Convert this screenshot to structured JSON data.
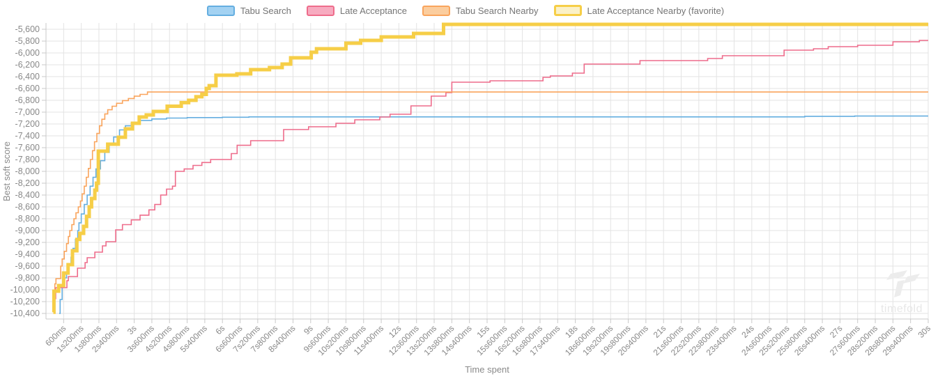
{
  "colors": {
    "grid": "#e3e3e3",
    "axis": "#c9c9c9",
    "tick_text": "#888888",
    "legend_text": "#757575",
    "watermark": "#ececec"
  },
  "watermark": {
    "text": "timefold"
  },
  "chart_data": {
    "type": "line",
    "step": true,
    "title": "",
    "xlabel": "Time spent",
    "ylabel": "Best soft score",
    "x_unit": "seconds",
    "xlim": [
      0,
      30
    ],
    "ylim": [
      -10400,
      -5600
    ],
    "y_tick_step": 200,
    "grid": true,
    "legend_position": "top",
    "x_tick_labels": [
      "600ms",
      "1s200ms",
      "1s800ms",
      "2s400ms",
      "3s",
      "3s600ms",
      "4s200ms",
      "4s800ms",
      "5s400ms",
      "6s",
      "6s600ms",
      "7s200ms",
      "7s800ms",
      "8s400ms",
      "9s",
      "9s600ms",
      "10s200ms",
      "10s800ms",
      "11s400ms",
      "12s",
      "12s600ms",
      "13s200ms",
      "13s800ms",
      "14s400ms",
      "15s",
      "15s600ms",
      "16s200ms",
      "16s800ms",
      "17s400ms",
      "18s",
      "18s600ms",
      "19s200ms",
      "19s800ms",
      "20s400ms",
      "21s",
      "21s600ms",
      "22s200ms",
      "22s800ms",
      "23s400ms",
      "24s",
      "24s600ms",
      "25s200ms",
      "25s800ms",
      "26s400ms",
      "27s",
      "27s600ms",
      "28s200ms",
      "28s800ms",
      "29s400ms",
      "30s"
    ],
    "y_tick_labels": [
      "-5,600",
      "-5,800",
      "-6,000",
      "-6,200",
      "-6,400",
      "-6,600",
      "-6,800",
      "-7,000",
      "-7,200",
      "-7,400",
      "-7,600",
      "-7,800",
      "-8,000",
      "-8,200",
      "-8,400",
      "-8,600",
      "-8,800",
      "-9,000",
      "-9,200",
      "-9,400",
      "-9,600",
      "-9,800",
      "-10,000",
      "-10,200",
      "-10,400"
    ],
    "series": [
      {
        "name": "Tabu Search",
        "color": "#64aee0",
        "fill": "#a3d2f2",
        "width": 1.6,
        "favorite": false,
        "points": [
          [
            0.45,
            -10400
          ],
          [
            0.48,
            -10165
          ],
          [
            0.55,
            -9930
          ],
          [
            0.62,
            -9800
          ],
          [
            0.7,
            -9700
          ],
          [
            0.78,
            -9580
          ],
          [
            0.85,
            -9450
          ],
          [
            0.92,
            -9300
          ],
          [
            1.0,
            -9150
          ],
          [
            1.08,
            -9000
          ],
          [
            1.12,
            -8870
          ],
          [
            1.2,
            -8720
          ],
          [
            1.3,
            -8560
          ],
          [
            1.4,
            -8400
          ],
          [
            1.5,
            -8250
          ],
          [
            1.6,
            -8100
          ],
          [
            1.7,
            -7960
          ],
          [
            1.85,
            -7820
          ],
          [
            2.0,
            -7680
          ],
          [
            2.15,
            -7550
          ],
          [
            2.3,
            -7420
          ],
          [
            2.5,
            -7300
          ],
          [
            2.7,
            -7230
          ],
          [
            2.9,
            -7180
          ],
          [
            3.2,
            -7140
          ],
          [
            3.6,
            -7115
          ],
          [
            4.1,
            -7100
          ],
          [
            4.8,
            -7092
          ],
          [
            6.0,
            -7086
          ],
          [
            6.9,
            -7080
          ],
          [
            25.8,
            -7072
          ],
          [
            27.5,
            -7066
          ],
          [
            30,
            -7066
          ]
        ]
      },
      {
        "name": "Late Acceptance",
        "color": "#ee6c8b",
        "fill": "#f7abc0",
        "width": 1.6,
        "favorite": false,
        "points": [
          [
            0.28,
            -10370
          ],
          [
            0.3,
            -10150
          ],
          [
            0.33,
            -9965
          ],
          [
            0.71,
            -9847
          ],
          [
            0.76,
            -9776
          ],
          [
            1.07,
            -9635
          ],
          [
            1.33,
            -9541
          ],
          [
            1.4,
            -9459
          ],
          [
            1.66,
            -9365
          ],
          [
            1.92,
            -9259
          ],
          [
            2.04,
            -9188
          ],
          [
            2.37,
            -8988
          ],
          [
            2.6,
            -8900
          ],
          [
            2.9,
            -8820
          ],
          [
            3.2,
            -8740
          ],
          [
            3.5,
            -8650
          ],
          [
            3.7,
            -8560
          ],
          [
            3.9,
            -8400
          ],
          [
            4.1,
            -8300
          ],
          [
            4.3,
            -8250
          ],
          [
            4.4,
            -8000
          ],
          [
            4.7,
            -7960
          ],
          [
            5.0,
            -7900
          ],
          [
            5.3,
            -7850
          ],
          [
            5.6,
            -7800
          ],
          [
            6.3,
            -7700
          ],
          [
            6.5,
            -7560
          ],
          [
            6.96,
            -7482
          ],
          [
            8.08,
            -7294
          ],
          [
            8.93,
            -7247
          ],
          [
            9.86,
            -7188
          ],
          [
            10.5,
            -7129
          ],
          [
            11.35,
            -7082
          ],
          [
            11.7,
            -7035
          ],
          [
            12.41,
            -6894
          ],
          [
            13.1,
            -6729
          ],
          [
            13.6,
            -6670
          ],
          [
            13.8,
            -6494
          ],
          [
            15.1,
            -6470
          ],
          [
            16.9,
            -6412
          ],
          [
            17.15,
            -6388
          ],
          [
            17.9,
            -6341
          ],
          [
            18.3,
            -6188
          ],
          [
            20.2,
            -6129
          ],
          [
            22.5,
            -6094
          ],
          [
            23.0,
            -6047
          ],
          [
            25.1,
            -5953
          ],
          [
            26.1,
            -5929
          ],
          [
            26.6,
            -5894
          ],
          [
            27.6,
            -5871
          ],
          [
            28.8,
            -5812
          ],
          [
            29.7,
            -5788
          ],
          [
            30,
            -5788
          ]
        ]
      },
      {
        "name": "Tabu Search Nearby",
        "color": "#f9a45c",
        "fill": "#fbcd9e",
        "width": 1.6,
        "favorite": false,
        "points": [
          [
            0.24,
            -10360
          ],
          [
            0.26,
            -10100
          ],
          [
            0.3,
            -9900
          ],
          [
            0.34,
            -9812
          ],
          [
            0.5,
            -9600
          ],
          [
            0.55,
            -9480
          ],
          [
            0.62,
            -9350
          ],
          [
            0.7,
            -9220
          ],
          [
            0.76,
            -9100
          ],
          [
            0.81,
            -9000
          ],
          [
            0.88,
            -8900
          ],
          [
            0.95,
            -8800
          ],
          [
            1.02,
            -8700
          ],
          [
            1.1,
            -8600
          ],
          [
            1.17,
            -8500
          ],
          [
            1.23,
            -8380
          ],
          [
            1.3,
            -8250
          ],
          [
            1.37,
            -8100
          ],
          [
            1.44,
            -7950
          ],
          [
            1.51,
            -7800
          ],
          [
            1.58,
            -7650
          ],
          [
            1.65,
            -7500
          ],
          [
            1.73,
            -7360
          ],
          [
            1.82,
            -7230
          ],
          [
            1.9,
            -7120
          ],
          [
            2.0,
            -7030
          ],
          [
            2.1,
            -6960
          ],
          [
            2.25,
            -6900
          ],
          [
            2.4,
            -6850
          ],
          [
            2.6,
            -6805
          ],
          [
            2.8,
            -6770
          ],
          [
            3.0,
            -6730
          ],
          [
            3.2,
            -6700
          ],
          [
            3.45,
            -6660
          ],
          [
            30,
            -6660
          ]
        ]
      },
      {
        "name": "Late Acceptance Nearby (favorite)",
        "color": "#f6ce47",
        "fill": "#fbf1c7",
        "width": 5,
        "favorite": true,
        "points": [
          [
            0.25,
            -10380
          ],
          [
            0.27,
            -10024
          ],
          [
            0.43,
            -9929
          ],
          [
            0.6,
            -9718
          ],
          [
            0.75,
            -9576
          ],
          [
            0.9,
            -9341
          ],
          [
            1.05,
            -9150
          ],
          [
            1.15,
            -9047
          ],
          [
            1.28,
            -8929
          ],
          [
            1.38,
            -8760
          ],
          [
            1.47,
            -8600
          ],
          [
            1.55,
            -8459
          ],
          [
            1.66,
            -8318
          ],
          [
            1.72,
            -8200
          ],
          [
            1.78,
            -7659
          ],
          [
            2.1,
            -7541
          ],
          [
            2.46,
            -7423
          ],
          [
            2.7,
            -7282
          ],
          [
            2.94,
            -7188
          ],
          [
            3.17,
            -7082
          ],
          [
            3.41,
            -7047
          ],
          [
            3.65,
            -6988
          ],
          [
            4.12,
            -6900
          ],
          [
            4.6,
            -6840
          ],
          [
            4.85,
            -6800
          ],
          [
            5.1,
            -6740
          ],
          [
            5.3,
            -6700
          ],
          [
            5.45,
            -6600
          ],
          [
            5.55,
            -6553
          ],
          [
            5.78,
            -6376
          ],
          [
            6.49,
            -6353
          ],
          [
            6.96,
            -6282
          ],
          [
            7.6,
            -6247
          ],
          [
            8.03,
            -6188
          ],
          [
            8.32,
            -6082
          ],
          [
            9.02,
            -5988
          ],
          [
            9.2,
            -5929
          ],
          [
            10.2,
            -5835
          ],
          [
            10.7,
            -5788
          ],
          [
            11.4,
            -5729
          ],
          [
            12.5,
            -5671
          ],
          [
            13.52,
            -5518
          ],
          [
            30,
            -5518
          ]
        ]
      }
    ]
  }
}
